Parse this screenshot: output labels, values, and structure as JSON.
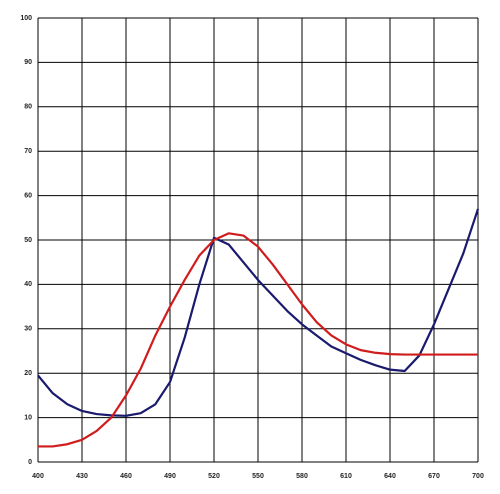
{
  "chart_data": {
    "type": "line",
    "x": [
      400,
      410,
      420,
      430,
      440,
      450,
      460,
      470,
      480,
      490,
      500,
      510,
      520,
      530,
      540,
      550,
      560,
      570,
      580,
      590,
      600,
      610,
      620,
      630,
      640,
      650,
      660,
      670,
      680,
      690,
      700
    ],
    "series": [
      {
        "color": "#1a1a6e",
        "values": [
          19.5,
          15.5,
          13,
          11.5,
          10.8,
          10.5,
          10.4,
          11,
          13,
          18,
          28,
          40,
          50.5,
          49,
          45,
          41,
          37.5,
          34,
          31,
          28.5,
          26,
          24.5,
          23,
          21.8,
          20.8,
          20.5,
          24,
          31,
          39,
          47,
          57
        ]
      },
      {
        "color": "#d01c1c",
        "values": [
          3.5,
          3.5,
          4,
          5,
          7,
          10,
          15,
          21,
          28.5,
          35,
          41,
          46.5,
          50,
          51.5,
          51,
          48.5,
          44.5,
          40,
          35.5,
          31.5,
          28.5,
          26.5,
          25.2,
          24.6,
          24.3,
          24.2,
          24.2,
          24.2,
          24.2,
          24.2,
          24.2
        ]
      }
    ],
    "xlim": [
      400,
      700
    ],
    "xticks": [
      400,
      430,
      460,
      490,
      520,
      550,
      580,
      610,
      640,
      670,
      700
    ],
    "ylim": [
      0,
      100
    ],
    "yticks": [
      0,
      10,
      20,
      30,
      40,
      50,
      60,
      70,
      80,
      90,
      100
    ],
    "grid": true
  }
}
